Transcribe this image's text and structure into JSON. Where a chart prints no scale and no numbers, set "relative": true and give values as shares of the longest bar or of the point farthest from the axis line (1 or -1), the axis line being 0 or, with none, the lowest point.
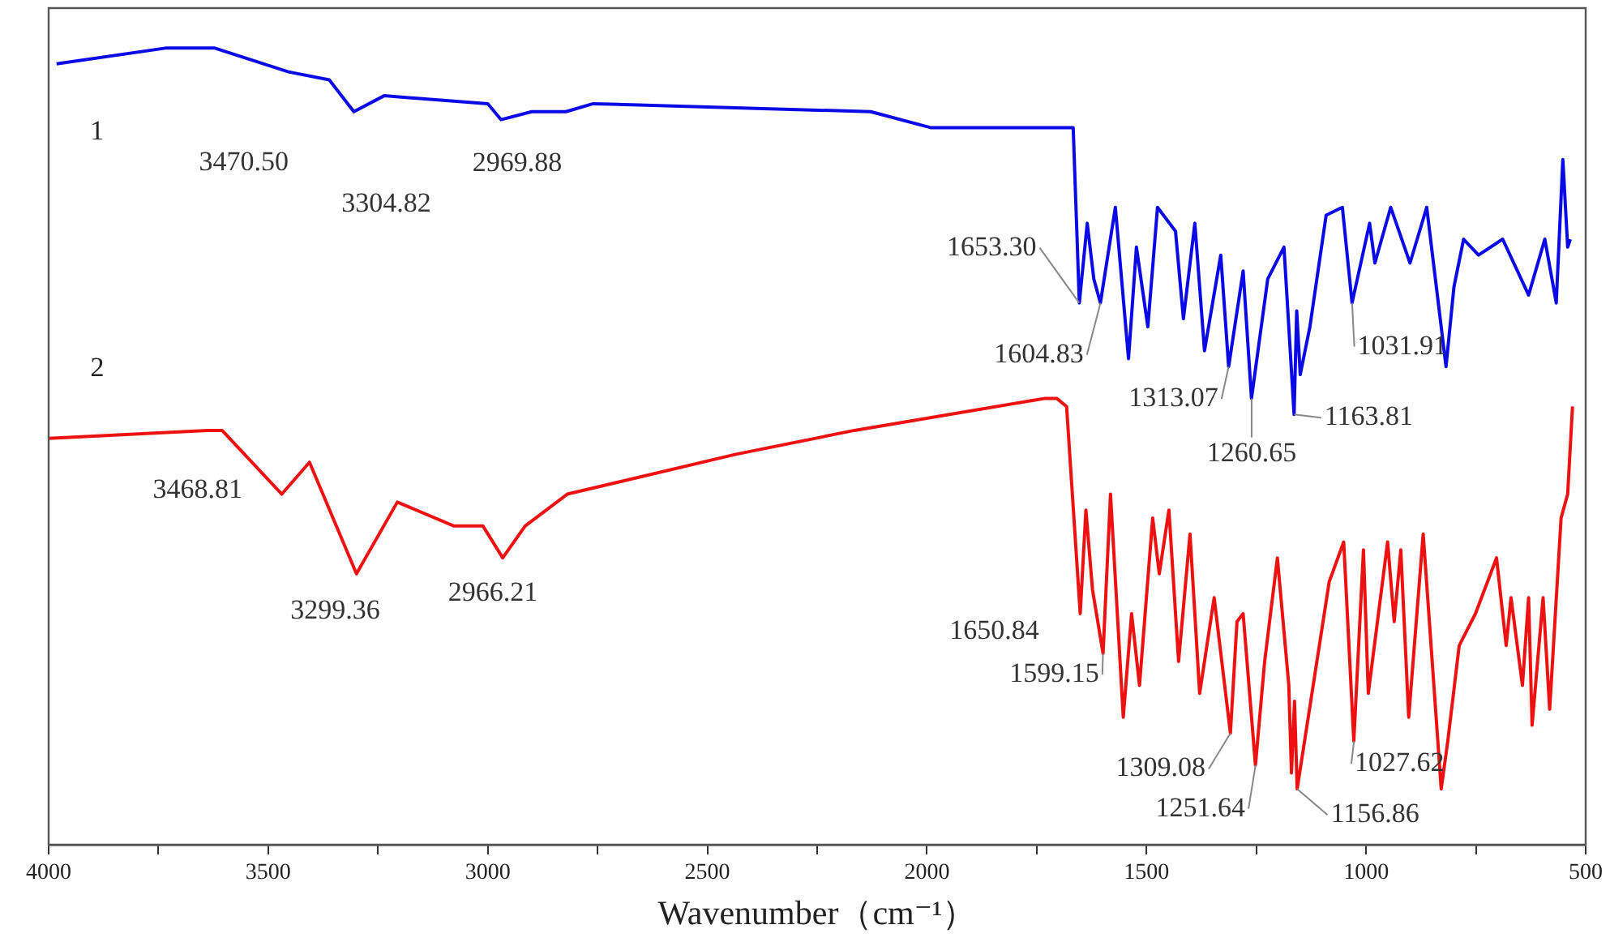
{
  "chart_data": {
    "type": "line",
    "relative": true,
    "xlabel": "Wavenumber（cm⁻¹）",
    "xlim": [
      4000,
      500
    ],
    "xticks": [
      4000,
      {
        "value": 3750,
        "label": null
      },
      3500,
      {
        "value": 3250,
        "label": null
      },
      3000,
      {
        "value": 2750,
        "label": null
      },
      2500,
      {
        "value": 2250,
        "label": null
      },
      2000,
      {
        "value": 1750,
        "label": null
      },
      1500,
      {
        "value": 1250,
        "label": null
      },
      1000,
      {
        "value": 750,
        "label": null
      },
      500
    ],
    "legend": false,
    "series": [
      {
        "name": "1",
        "color": "#0a0ae6",
        "x": [
          3982,
          3731,
          3623,
          3454,
          3361,
          3305,
          3236,
          3000,
          2970,
          2900,
          2822,
          2760,
          2128,
          1992,
          1667,
          1653,
          1635,
          1620,
          1605,
          1571,
          1541,
          1523,
          1497,
          1475,
          1434,
          1416,
          1390,
          1368,
          1331,
          1313,
          1280,
          1261,
          1224,
          1187,
          1164,
          1158,
          1150,
          1128,
          1091,
          1054,
          1032,
          992,
          980,
          944,
          900,
          862,
          818,
          800,
          778,
          744,
          689,
          630,
          593,
          567,
          552,
          541,
          535
        ],
        "values": [
          0.98,
          1.0,
          1.0,
          0.97,
          0.96,
          0.92,
          0.94,
          0.93,
          0.91,
          0.92,
          0.92,
          0.93,
          0.92,
          0.9,
          0.9,
          0.68,
          0.78,
          0.71,
          0.68,
          0.8,
          0.61,
          0.75,
          0.65,
          0.8,
          0.77,
          0.66,
          0.78,
          0.62,
          0.74,
          0.6,
          0.72,
          0.56,
          0.71,
          0.75,
          0.54,
          0.67,
          0.59,
          0.65,
          0.79,
          0.8,
          0.68,
          0.78,
          0.73,
          0.8,
          0.73,
          0.8,
          0.6,
          0.7,
          0.76,
          0.74,
          0.76,
          0.69,
          0.76,
          0.68,
          0.86,
          0.75,
          0.76
        ]
      },
      {
        "name": "2",
        "color": "#ee1111",
        "x": [
          4000,
          3638,
          3605,
          3469,
          3406,
          3299,
          3206,
          3077,
          3011,
          2966,
          2915,
          2819,
          2435,
          2165,
          1733,
          1704,
          1682,
          1651,
          1638,
          1623,
          1599,
          1582,
          1553,
          1534,
          1516,
          1486,
          1471,
          1449,
          1427,
          1401,
          1379,
          1346,
          1309,
          1294,
          1280,
          1252,
          1231,
          1202,
          1176,
          1170,
          1163,
          1157,
          1084,
          1051,
          1028,
          1006,
          995,
          951,
          936,
          921,
          903,
          870,
          829,
          814,
          788,
          751,
          703,
          681,
          670,
          644,
          630,
          622,
          597,
          582,
          556,
          541,
          530
        ],
        "values": [
          0.51,
          0.52,
          0.52,
          0.44,
          0.48,
          0.34,
          0.43,
          0.4,
          0.4,
          0.36,
          0.4,
          0.44,
          0.49,
          0.52,
          0.56,
          0.56,
          0.55,
          0.29,
          0.42,
          0.32,
          0.24,
          0.44,
          0.16,
          0.29,
          0.2,
          0.41,
          0.34,
          0.42,
          0.23,
          0.39,
          0.19,
          0.31,
          0.14,
          0.28,
          0.29,
          0.1,
          0.23,
          0.36,
          0.2,
          0.09,
          0.18,
          0.07,
          0.33,
          0.38,
          0.13,
          0.37,
          0.19,
          0.38,
          0.28,
          0.37,
          0.16,
          0.39,
          0.07,
          0.13,
          0.25,
          0.29,
          0.36,
          0.25,
          0.31,
          0.2,
          0.31,
          0.15,
          0.31,
          0.17,
          0.41,
          0.44,
          0.55
        ]
      }
    ],
    "annotations": [
      {
        "text": "3470.50",
        "x": 3470.5,
        "y": 0.97
      },
      {
        "text": "3304.82",
        "x": 3304.82,
        "y": 0.92
      },
      {
        "text": "2969.88",
        "x": 2969.88,
        "y": 0.91
      },
      {
        "text": "1653.30",
        "x": 1653.3,
        "y": 0.68
      },
      {
        "text": "1604.83",
        "x": 1604.83,
        "y": 0.68
      },
      {
        "text": "1313.07",
        "x": 1313.07,
        "y": 0.6
      },
      {
        "text": "1260.65",
        "x": 1260.65,
        "y": 0.56
      },
      {
        "text": "1163.81",
        "x": 1163.81,
        "y": 0.54
      },
      {
        "text": "1031.91",
        "x": 1031.91,
        "y": 0.68
      },
      {
        "text": "3468.81",
        "x": 3468.81,
        "y": 0.44
      },
      {
        "text": "3299.36",
        "x": 3299.36,
        "y": 0.34
      },
      {
        "text": "2966.21",
        "x": 2966.21,
        "y": 0.36
      },
      {
        "text": "1650.84",
        "x": 1650.84,
        "y": 0.29
      },
      {
        "text": "1599.15",
        "x": 1599.15,
        "y": 0.24
      },
      {
        "text": "1309.08",
        "x": 1309.08,
        "y": 0.14
      },
      {
        "text": "1251.64",
        "x": 1251.64,
        "y": 0.1
      },
      {
        "text": "1156.86",
        "x": 1156.86,
        "y": 0.07
      },
      {
        "text": "1027.62",
        "x": 1027.62,
        "y": 0.13
      }
    ]
  }
}
